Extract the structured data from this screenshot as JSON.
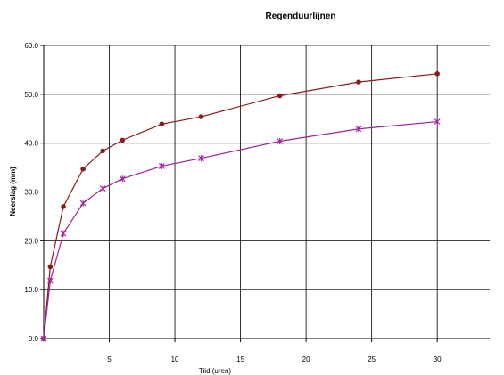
{
  "chart_data": {
    "type": "line",
    "title": "Regenduurlijnen",
    "xlabel": "Tiid (uren)",
    "ylabel": "Neerslag (mm)",
    "xlim": [
      0,
      34
    ],
    "ylim": [
      0,
      60
    ],
    "xticks": [
      5,
      10,
      15,
      20,
      25,
      30
    ],
    "xtick_labels": [
      "5",
      "10",
      "15",
      "20",
      "25",
      "30"
    ],
    "yticks": [
      0,
      10,
      20,
      30,
      40,
      50,
      60
    ],
    "ytick_labels": [
      "0.0",
      "10.0",
      "20.0",
      "30.0",
      "40.0",
      "50.0",
      "60.0"
    ],
    "grid": true,
    "legend": "none",
    "series": [
      {
        "color": "#8b1a1a",
        "marker": "dot",
        "x": [
          0,
          0.5,
          1.5,
          3,
          4.5,
          6,
          9,
          12,
          18,
          24,
          30
        ],
        "y": [
          0,
          14.7,
          27,
          34.7,
          38.4,
          40.6,
          43.9,
          45.4,
          49.7,
          52.5,
          54.2
        ]
      },
      {
        "color": "#a020a0",
        "marker": "star",
        "x": [
          0,
          0.5,
          1.5,
          3,
          4.5,
          6,
          9,
          12,
          18,
          24,
          30
        ],
        "y": [
          0,
          11.8,
          21.5,
          27.7,
          30.7,
          32.7,
          35.3,
          36.9,
          40.4,
          42.9,
          44.4
        ]
      }
    ]
  }
}
